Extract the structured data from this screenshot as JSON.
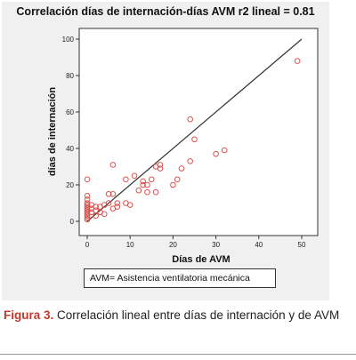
{
  "chart_data": {
    "type": "scatter",
    "title": "Correlación días de internación-días AVM  r2 lineal = 0.81",
    "xlabel": "Días de AVM",
    "ylabel": "días de internación",
    "xlim": [
      0,
      50
    ],
    "ylim": [
      0,
      100
    ],
    "x_ticks": [
      "0",
      "10",
      "20",
      "30",
      "40",
      "50"
    ],
    "y_ticks": [
      "0",
      "20",
      "40",
      "60",
      "80",
      "100"
    ],
    "grid": false,
    "fit_line": {
      "from": [
        0,
        0
      ],
      "to": [
        50,
        100
      ]
    },
    "marker_color": "#d9534f",
    "points": [
      [
        0,
        1
      ],
      [
        0,
        2
      ],
      [
        0,
        3
      ],
      [
        0,
        4
      ],
      [
        0,
        5
      ],
      [
        0,
        6
      ],
      [
        0,
        7
      ],
      [
        0,
        8
      ],
      [
        0,
        9
      ],
      [
        0,
        10
      ],
      [
        0,
        12
      ],
      [
        0,
        14
      ],
      [
        0,
        23
      ],
      [
        1,
        5
      ],
      [
        1,
        7
      ],
      [
        1,
        9
      ],
      [
        2,
        3
      ],
      [
        2,
        6
      ],
      [
        2,
        8
      ],
      [
        3,
        5
      ],
      [
        3,
        8
      ],
      [
        4,
        4
      ],
      [
        4,
        9
      ],
      [
        5,
        10
      ],
      [
        5,
        15
      ],
      [
        6,
        7
      ],
      [
        6,
        15
      ],
      [
        6,
        31
      ],
      [
        7,
        8
      ],
      [
        7,
        10
      ],
      [
        9,
        10
      ],
      [
        9,
        23
      ],
      [
        10,
        9
      ],
      [
        11,
        25
      ],
      [
        12,
        17
      ],
      [
        13,
        20
      ],
      [
        13,
        22
      ],
      [
        14,
        16
      ],
      [
        14,
        20
      ],
      [
        15,
        23
      ],
      [
        16,
        16
      ],
      [
        16,
        30
      ],
      [
        17,
        29
      ],
      [
        17,
        31
      ],
      [
        20,
        20
      ],
      [
        21,
        23
      ],
      [
        22,
        29
      ],
      [
        24,
        33
      ],
      [
        24,
        56
      ],
      [
        25,
        45
      ],
      [
        30,
        37
      ],
      [
        32,
        39
      ],
      [
        49,
        88
      ]
    ],
    "legend_note": "AVM= Asistencia ventilatoria mecánica"
  },
  "caption": {
    "label": "Figura 3.",
    "text": " Correlación lineal entre días de internación y de AVM"
  }
}
